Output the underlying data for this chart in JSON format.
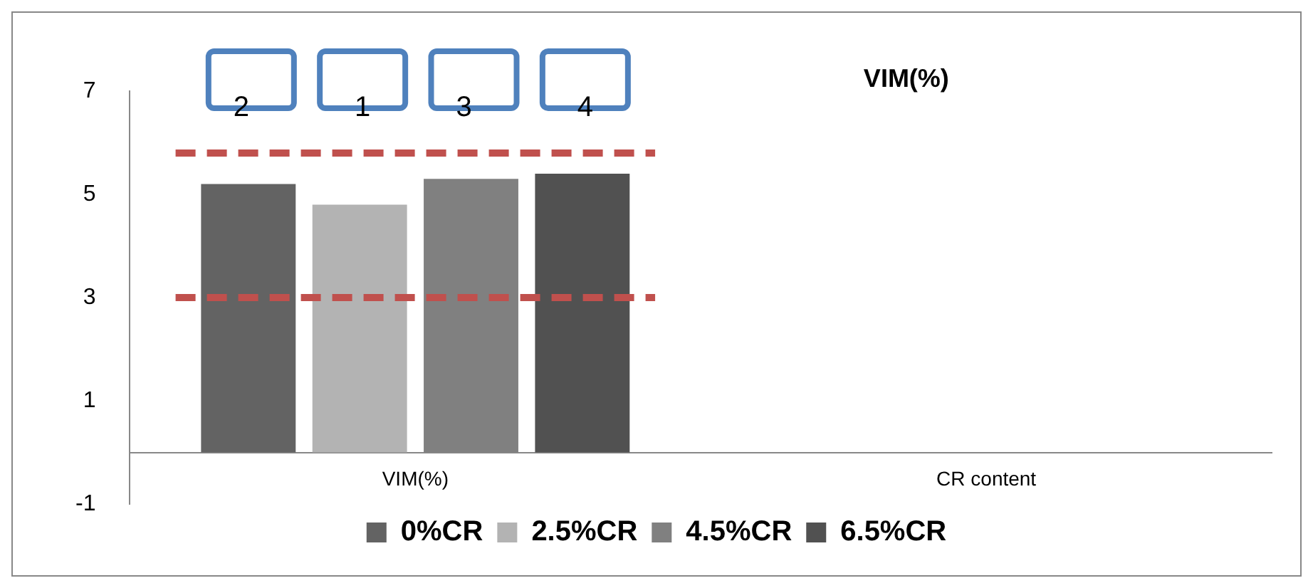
{
  "chart_data": {
    "type": "bar",
    "title": "VIM(%)",
    "categories": [
      "VIM(%)",
      "CR content"
    ],
    "series": [
      {
        "name": "0%CR",
        "color": "#636363",
        "values": [
          5.2,
          null
        ]
      },
      {
        "name": "2.5%CR",
        "color": "#b3b3b3",
        "values": [
          4.8,
          null
        ]
      },
      {
        "name": "4.5%CR",
        "color": "#808080",
        "values": [
          5.3,
          null
        ]
      },
      {
        "name": "6.5%CR",
        "color": "#515151",
        "values": [
          5.4,
          null
        ]
      }
    ],
    "ylim": [
      -1,
      7
    ],
    "yticks": [
      -1,
      1,
      3,
      5,
      7
    ],
    "grid": false,
    "legend": "bottom",
    "ref_lines": [
      {
        "axis": "y",
        "value": 5.8,
        "color": "#c0504d",
        "line_style": "dashed"
      },
      {
        "axis": "y",
        "value": 3,
        "color": "#c0504d",
        "line_style": "dashed"
      }
    ],
    "annotations": [
      "2",
      "1",
      "3",
      "4"
    ]
  }
}
